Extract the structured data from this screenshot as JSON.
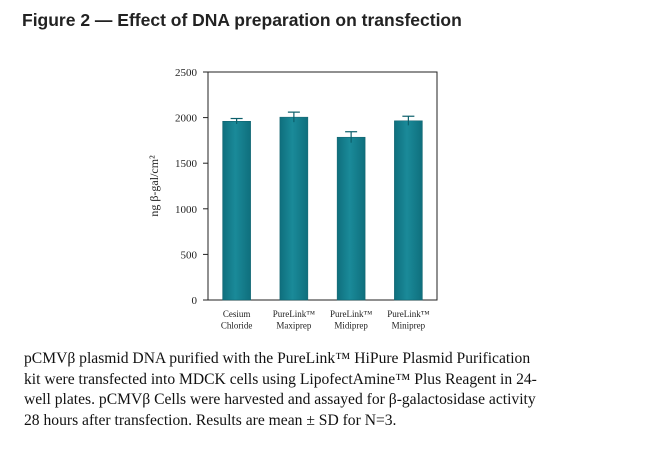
{
  "figure": {
    "title": "Figure 2 — Effect of DNA preparation on transfection",
    "caption_lines": [
      "pCMVβ plasmid DNA purified with the PureLink™ HiPure Plasmid Purification",
      "kit were transfected into MDCK cells using LipofectAmine™ Plus Reagent in 24-",
      "well plates. pCMVβ Cells were harvested and assayed for β-galactosidase activity",
      "28 hours after transfection. Results are mean ± SD for N=3."
    ]
  },
  "chart_data": {
    "type": "bar",
    "title": "",
    "xlabel": "",
    "ylabel": "ng β-gal/cm²",
    "ylim": [
      0,
      2500
    ],
    "yticks": [
      0,
      500,
      1000,
      1500,
      2000,
      2500
    ],
    "grid": false,
    "legend": "none",
    "bar_color": "#1a8696",
    "categories": [
      [
        "Cesium",
        "Chloride"
      ],
      [
        "PureLink™",
        "Maxiprep"
      ],
      [
        "PureLink™",
        "Midiprep"
      ],
      [
        "PureLink™",
        "Miniprep"
      ]
    ],
    "values": [
      1960,
      2005,
      1785,
      1965
    ],
    "errors": [
      30,
      55,
      60,
      50
    ]
  }
}
